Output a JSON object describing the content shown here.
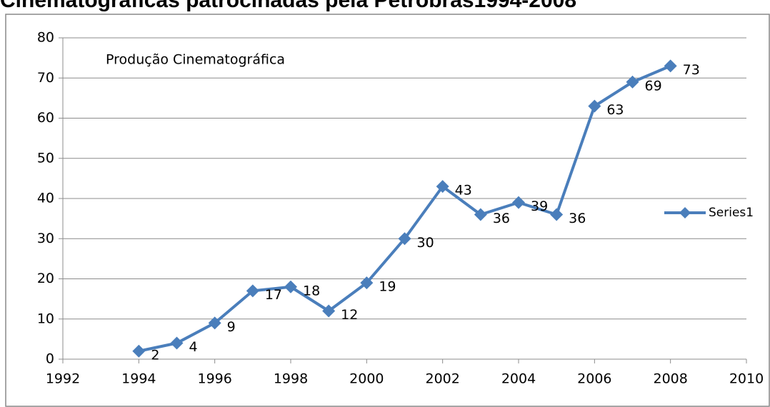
{
  "chart_data": {
    "type": "line",
    "title": "Cinematográficas patrocinadas pela Petrobras1994-2008",
    "annotation": "Produção Cinematográfica",
    "x": [
      1994,
      1995,
      1996,
      1997,
      1998,
      1999,
      2000,
      2001,
      2002,
      2003,
      2004,
      2005,
      2006,
      2007,
      2008
    ],
    "series": [
      {
        "name": "Series1",
        "color": "#4a7ebb",
        "values": [
          2,
          4,
          9,
          17,
          18,
          12,
          19,
          30,
          43,
          36,
          39,
          36,
          63,
          69,
          73
        ]
      }
    ],
    "xlim": [
      1992,
      2010
    ],
    "xticks": [
      1992,
      1994,
      1996,
      1998,
      2000,
      2002,
      2004,
      2006,
      2008,
      2010
    ],
    "ylim": [
      0,
      80
    ],
    "yticks": [
      0,
      10,
      20,
      30,
      40,
      50,
      60,
      70,
      80
    ],
    "grid": true,
    "legend": "right"
  }
}
